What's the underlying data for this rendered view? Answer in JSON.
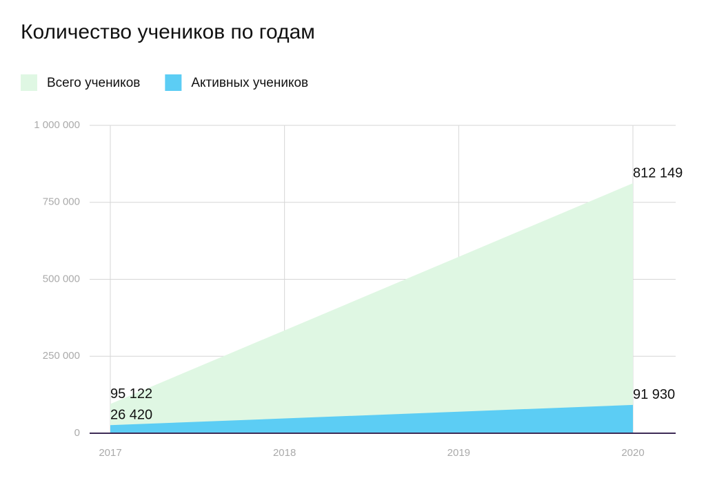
{
  "chart_data": {
    "type": "area",
    "title": "Количество учеников по годам",
    "categories": [
      "2017",
      "2018",
      "2019",
      "2020"
    ],
    "series": [
      {
        "name": "Всего учеников",
        "color": "#dff7e3",
        "values": [
          95122,
          334000,
          573000,
          812149
        ],
        "value_labels": [
          "95 122",
          null,
          null,
          "812 149"
        ]
      },
      {
        "name": "Активных учеников",
        "color": "#5ccdf4",
        "values": [
          26420,
          48000,
          70000,
          91930
        ],
        "value_labels": [
          "26 420",
          null,
          null,
          "91 930"
        ]
      }
    ],
    "ylim": [
      0,
      1000000
    ],
    "yticks": [
      0,
      {
        "value": 250000,
        "label": "250 000"
      },
      {
        "value": 500000,
        "label": "500 000"
      },
      {
        "value": 750000,
        "label": "750 000"
      },
      {
        "value": 1000000,
        "label": "1 000 000"
      }
    ],
    "grid": true
  }
}
